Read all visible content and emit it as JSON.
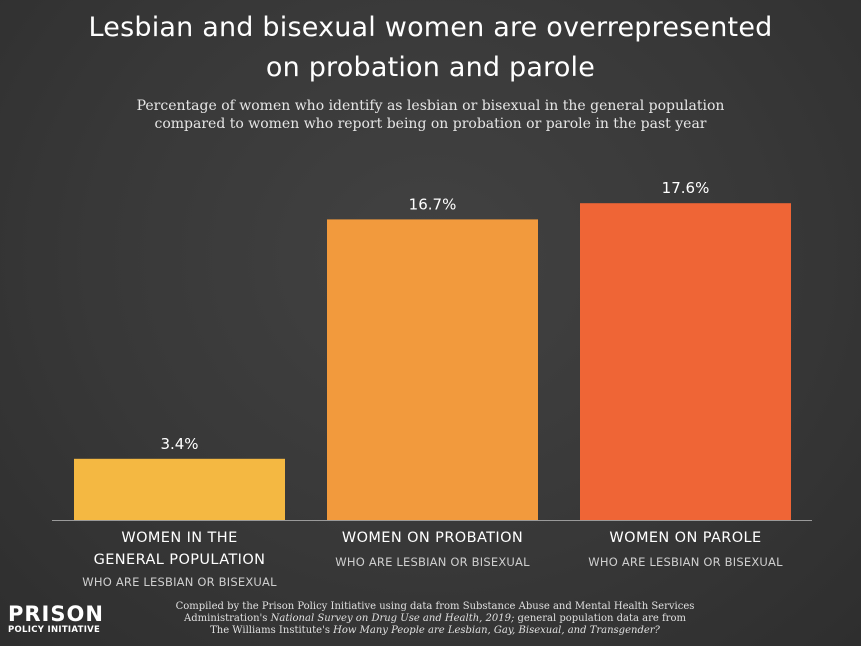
{
  "title_line1": "Lesbian and bisexual women are overrepresented",
  "title_line2": "on probation and parole",
  "subtitle_line1": "Percentage of women who identify as lesbian or bisexual in the general population",
  "subtitle_line2": "compared to women who report being on probation or parole in the past year",
  "chart_data": {
    "type": "bar",
    "title": "Lesbian and bisexual women are overrepresented on probation and parole",
    "subtitle": "Percentage of women who identify as lesbian or bisexual in the general population compared to women who report being on probation or parole in the past year",
    "xlabel": "",
    "ylabel": "",
    "ylim": [
      0,
      20
    ],
    "grid": false,
    "value_unit": "%",
    "categories": [
      {
        "line1": "WOMEN IN THE",
        "line2": "GENERAL POPULATION",
        "sub": "WHO ARE LESBIAN OR BISEXUAL",
        "value": 3.4,
        "label": "3.4%",
        "color": "#f4b842"
      },
      {
        "line1": "WOMEN ON PROBATION",
        "line2": "",
        "sub": "WHO ARE LESBIAN OR BISEXUAL",
        "value": 16.7,
        "label": "16.7%",
        "color": "#f29a3d"
      },
      {
        "line1": "WOMEN ON PAROLE",
        "line2": "",
        "sub": "WHO ARE LESBIAN OR BISEXUAL",
        "value": 17.6,
        "label": "17.6%",
        "color": "#ef6536"
      }
    ],
    "values": [
      3.4,
      16.7,
      17.6
    ]
  },
  "logo": {
    "top": "PRISON",
    "bottom": "POLICY INITIATIVE"
  },
  "source": {
    "line1": "Compiled by the Prison Policy Initiative using data from Substance Abuse and Mental Health Services",
    "line2_a": "Administration's ",
    "line2_italic": "National Survey on Drug Use and Health, 2019;",
    "line2_b": " general population data are from",
    "line3_a": "The Williams Institute's ",
    "line3_italic": "How Many People are Lesbian, Gay, Bisexual, and Transgender?"
  },
  "colors": {
    "background": "#3a3a3a",
    "bar_general": "#f4b842",
    "bar_probation": "#f29a3d",
    "bar_parole": "#ef6536",
    "baseline": "#9a9a9a"
  }
}
